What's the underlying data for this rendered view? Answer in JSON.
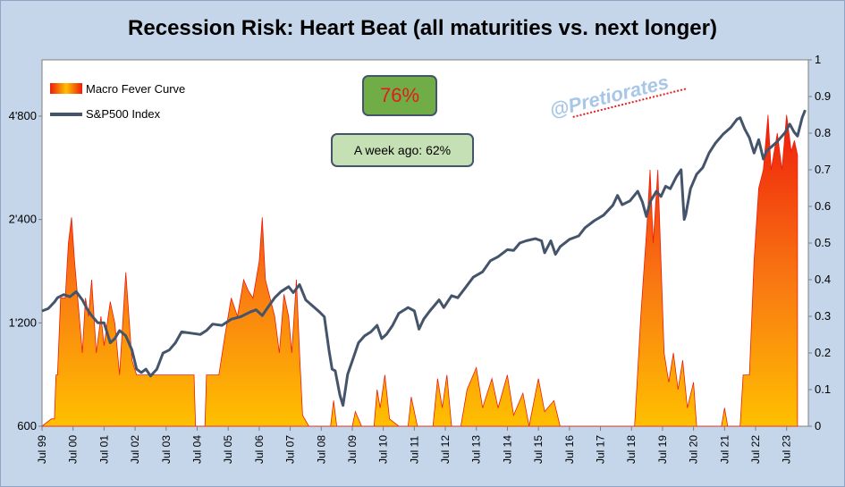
{
  "chart_data": {
    "type": "area",
    "title": "Recession Risk: Heart Beat (all maturities vs. next longer)",
    "xlabel": "",
    "ylabel_left": "",
    "ylabel_right": "",
    "x_ticks": [
      "Jul 99",
      "Jul 00",
      "Jul 01",
      "Jul 02",
      "Jul 03",
      "Jul 04",
      "Jul 05",
      "Jul 06",
      "Jul 07",
      "Jul 08",
      "Jul 09",
      "Jul 10",
      "Jul 11",
      "Jul 12",
      "Jul 13",
      "Jul 14",
      "Jul 15",
      "Jul 16",
      "Jul 17",
      "Jul 18",
      "Jul 19",
      "Jul 20",
      "Jul 21",
      "Jul 22",
      "Jul 23"
    ],
    "y_left_ticks": [
      "600",
      "1'200",
      "2'400",
      "4'800"
    ],
    "y_left_scale": "log",
    "y_left_range": [
      600,
      7000
    ],
    "y_right_ticks": [
      "0",
      "0.1",
      "0.2",
      "0.3",
      "0.4",
      "0.5",
      "0.6",
      "0.7",
      "0.8",
      "0.9",
      "1"
    ],
    "y_right_range": [
      0,
      1
    ],
    "grid": false,
    "legend_position": "top-left",
    "colors": {
      "fever_top": "#ee1c0c",
      "fever_bottom": "#ffc000",
      "sp500_line": "#44546a",
      "plot_bg": "#ffffff",
      "figure_bg": "#c5d6ea"
    },
    "series": [
      {
        "name": "Macro Fever Curve",
        "axis": "right",
        "kind": "area",
        "points": [
          [
            1999.5,
            0.0
          ],
          [
            1999.8,
            0.02
          ],
          [
            1999.9,
            0.02
          ],
          [
            1999.95,
            0.14
          ],
          [
            2000.0,
            0.14
          ],
          [
            2000.1,
            0.35
          ],
          [
            2000.25,
            0.35
          ],
          [
            2000.35,
            0.5
          ],
          [
            2000.45,
            0.57
          ],
          [
            2000.55,
            0.45
          ],
          [
            2000.65,
            0.35
          ],
          [
            2000.8,
            0.2
          ],
          [
            2000.9,
            0.35
          ],
          [
            2001.0,
            0.3
          ],
          [
            2001.1,
            0.4
          ],
          [
            2001.25,
            0.2
          ],
          [
            2001.4,
            0.3
          ],
          [
            2001.5,
            0.22
          ],
          [
            2001.7,
            0.34
          ],
          [
            2001.85,
            0.28
          ],
          [
            2002.0,
            0.14
          ],
          [
            2002.2,
            0.42
          ],
          [
            2002.4,
            0.18
          ],
          [
            2002.55,
            0.14
          ],
          [
            2003.0,
            0.14
          ],
          [
            2003.5,
            0.14
          ],
          [
            2004.0,
            0.14
          ],
          [
            2004.4,
            0.14
          ],
          [
            2004.45,
            0.0
          ],
          [
            2004.75,
            0.0
          ],
          [
            2004.8,
            0.14
          ],
          [
            2005.2,
            0.14
          ],
          [
            2005.4,
            0.25
          ],
          [
            2005.6,
            0.35
          ],
          [
            2005.8,
            0.3
          ],
          [
            2006.0,
            0.4
          ],
          [
            2006.15,
            0.37
          ],
          [
            2006.3,
            0.35
          ],
          [
            2006.5,
            0.45
          ],
          [
            2006.6,
            0.57
          ],
          [
            2006.7,
            0.4
          ],
          [
            2006.85,
            0.35
          ],
          [
            2007.0,
            0.3
          ],
          [
            2007.15,
            0.2
          ],
          [
            2007.3,
            0.36
          ],
          [
            2007.45,
            0.3
          ],
          [
            2007.55,
            0.2
          ],
          [
            2007.7,
            0.4
          ],
          [
            2007.8,
            0.2
          ],
          [
            2007.9,
            0.03
          ],
          [
            2008.1,
            0.0
          ],
          [
            2008.8,
            0.0
          ],
          [
            2008.9,
            0.07
          ],
          [
            2009.0,
            0.0
          ],
          [
            2009.5,
            0.0
          ],
          [
            2009.6,
            0.04
          ],
          [
            2009.8,
            0.0
          ],
          [
            2010.2,
            0.0
          ],
          [
            2010.3,
            0.1
          ],
          [
            2010.4,
            0.05
          ],
          [
            2010.55,
            0.14
          ],
          [
            2010.7,
            0.02
          ],
          [
            2011.0,
            0.0
          ],
          [
            2011.3,
            0.0
          ],
          [
            2011.4,
            0.08
          ],
          [
            2011.6,
            0.0
          ],
          [
            2012.1,
            0.0
          ],
          [
            2012.25,
            0.13
          ],
          [
            2012.4,
            0.05
          ],
          [
            2012.55,
            0.14
          ],
          [
            2012.7,
            0.0
          ],
          [
            2013.0,
            0.0
          ],
          [
            2013.2,
            0.1
          ],
          [
            2013.5,
            0.16
          ],
          [
            2013.7,
            0.05
          ],
          [
            2014.0,
            0.13
          ],
          [
            2014.2,
            0.05
          ],
          [
            2014.5,
            0.14
          ],
          [
            2014.7,
            0.03
          ],
          [
            2015.0,
            0.09
          ],
          [
            2015.2,
            0.0
          ],
          [
            2015.5,
            0.13
          ],
          [
            2015.7,
            0.04
          ],
          [
            2016.0,
            0.07
          ],
          [
            2016.2,
            0.0
          ],
          [
            2018.6,
            0.0
          ],
          [
            2018.7,
            0.15
          ],
          [
            2018.8,
            0.3
          ],
          [
            2019.0,
            0.55
          ],
          [
            2019.1,
            0.7
          ],
          [
            2019.2,
            0.5
          ],
          [
            2019.35,
            0.7
          ],
          [
            2019.45,
            0.45
          ],
          [
            2019.55,
            0.2
          ],
          [
            2019.7,
            0.12
          ],
          [
            2019.85,
            0.2
          ],
          [
            2020.0,
            0.1
          ],
          [
            2020.15,
            0.18
          ],
          [
            2020.3,
            0.05
          ],
          [
            2020.5,
            0.12
          ],
          [
            2020.6,
            0.0
          ],
          [
            2021.4,
            0.0
          ],
          [
            2021.5,
            0.05
          ],
          [
            2021.6,
            0.0
          ],
          [
            2022.0,
            0.0
          ],
          [
            2022.1,
            0.14
          ],
          [
            2022.3,
            0.14
          ],
          [
            2022.45,
            0.45
          ],
          [
            2022.6,
            0.65
          ],
          [
            2022.75,
            0.7
          ],
          [
            2022.9,
            0.85
          ],
          [
            2023.0,
            0.7
          ],
          [
            2023.2,
            0.8
          ],
          [
            2023.35,
            0.7
          ],
          [
            2023.5,
            0.85
          ],
          [
            2023.65,
            0.75
          ],
          [
            2023.75,
            0.78
          ],
          [
            2023.85,
            0.74
          ]
        ]
      },
      {
        "name": "S&P500 Index",
        "axis": "left",
        "kind": "line",
        "points": [
          [
            1999.5,
            1300
          ],
          [
            1999.7,
            1320
          ],
          [
            1999.9,
            1380
          ],
          [
            2000.0,
            1420
          ],
          [
            2000.2,
            1450
          ],
          [
            2000.4,
            1430
          ],
          [
            2000.6,
            1480
          ],
          [
            2000.8,
            1400
          ],
          [
            2000.95,
            1320
          ],
          [
            2001.1,
            1260
          ],
          [
            2001.3,
            1200
          ],
          [
            2001.5,
            1200
          ],
          [
            2001.7,
            1050
          ],
          [
            2001.85,
            1080
          ],
          [
            2002.0,
            1140
          ],
          [
            2002.2,
            1100
          ],
          [
            2002.4,
            1000
          ],
          [
            2002.55,
            880
          ],
          [
            2002.7,
            860
          ],
          [
            2002.85,
            880
          ],
          [
            2003.0,
            840
          ],
          [
            2003.2,
            880
          ],
          [
            2003.4,
            980
          ],
          [
            2003.6,
            1000
          ],
          [
            2003.8,
            1050
          ],
          [
            2004.0,
            1130
          ],
          [
            2004.3,
            1120
          ],
          [
            2004.6,
            1110
          ],
          [
            2004.8,
            1140
          ],
          [
            2005.0,
            1190
          ],
          [
            2005.3,
            1180
          ],
          [
            2005.6,
            1230
          ],
          [
            2005.9,
            1250
          ],
          [
            2006.2,
            1290
          ],
          [
            2006.4,
            1310
          ],
          [
            2006.6,
            1260
          ],
          [
            2006.8,
            1340
          ],
          [
            2007.0,
            1420
          ],
          [
            2007.2,
            1480
          ],
          [
            2007.45,
            1530
          ],
          [
            2007.6,
            1470
          ],
          [
            2007.8,
            1550
          ],
          [
            2008.0,
            1400
          ],
          [
            2008.2,
            1350
          ],
          [
            2008.45,
            1290
          ],
          [
            2008.6,
            1250
          ],
          [
            2008.75,
            1000
          ],
          [
            2008.85,
            880
          ],
          [
            2008.95,
            870
          ],
          [
            2009.1,
            740
          ],
          [
            2009.2,
            690
          ],
          [
            2009.35,
            850
          ],
          [
            2009.5,
            930
          ],
          [
            2009.7,
            1050
          ],
          [
            2009.9,
            1100
          ],
          [
            2010.1,
            1130
          ],
          [
            2010.3,
            1180
          ],
          [
            2010.45,
            1080
          ],
          [
            2010.6,
            1110
          ],
          [
            2010.8,
            1180
          ],
          [
            2011.0,
            1280
          ],
          [
            2011.3,
            1330
          ],
          [
            2011.5,
            1300
          ],
          [
            2011.65,
            1150
          ],
          [
            2011.8,
            1230
          ],
          [
            2012.0,
            1300
          ],
          [
            2012.3,
            1400
          ],
          [
            2012.45,
            1330
          ],
          [
            2012.7,
            1440
          ],
          [
            2012.9,
            1420
          ],
          [
            2013.1,
            1500
          ],
          [
            2013.4,
            1630
          ],
          [
            2013.7,
            1690
          ],
          [
            2013.95,
            1820
          ],
          [
            2014.2,
            1870
          ],
          [
            2014.5,
            1960
          ],
          [
            2014.7,
            1950
          ],
          [
            2014.9,
            2050
          ],
          [
            2015.1,
            2080
          ],
          [
            2015.4,
            2110
          ],
          [
            2015.6,
            2080
          ],
          [
            2015.7,
            1920
          ],
          [
            2015.9,
            2080
          ],
          [
            2016.05,
            1900
          ],
          [
            2016.2,
            2000
          ],
          [
            2016.5,
            2100
          ],
          [
            2016.8,
            2150
          ],
          [
            2017.0,
            2270
          ],
          [
            2017.3,
            2380
          ],
          [
            2017.6,
            2470
          ],
          [
            2017.9,
            2640
          ],
          [
            2018.05,
            2820
          ],
          [
            2018.2,
            2650
          ],
          [
            2018.45,
            2720
          ],
          [
            2018.7,
            2900
          ],
          [
            2018.85,
            2700
          ],
          [
            2018.98,
            2450
          ],
          [
            2019.1,
            2700
          ],
          [
            2019.3,
            2900
          ],
          [
            2019.45,
            2800
          ],
          [
            2019.6,
            3000
          ],
          [
            2019.75,
            2950
          ],
          [
            2019.95,
            3200
          ],
          [
            2020.1,
            3350
          ],
          [
            2020.2,
            2400
          ],
          [
            2020.25,
            2480
          ],
          [
            2020.4,
            2950
          ],
          [
            2020.6,
            3250
          ],
          [
            2020.8,
            3400
          ],
          [
            2021.0,
            3750
          ],
          [
            2021.2,
            4000
          ],
          [
            2021.45,
            4250
          ],
          [
            2021.7,
            4450
          ],
          [
            2021.9,
            4700
          ],
          [
            2022.0,
            4750
          ],
          [
            2022.15,
            4400
          ],
          [
            2022.3,
            4150
          ],
          [
            2022.45,
            3750
          ],
          [
            2022.6,
            4100
          ],
          [
            2022.75,
            3600
          ],
          [
            2022.85,
            3800
          ],
          [
            2023.0,
            3900
          ],
          [
            2023.2,
            4050
          ],
          [
            2023.45,
            4300
          ],
          [
            2023.6,
            4550
          ],
          [
            2023.75,
            4300
          ],
          [
            2023.85,
            4200
          ],
          [
            2024.0,
            4750
          ],
          [
            2024.1,
            5000
          ]
        ]
      }
    ]
  },
  "legend": {
    "fever_label": "Macro Fever Curve",
    "sp_label": "S&P500 Index"
  },
  "badges": {
    "current_value": "76%",
    "week_ago": "A week ago: 62%"
  },
  "watermark": "@Pretiorates"
}
